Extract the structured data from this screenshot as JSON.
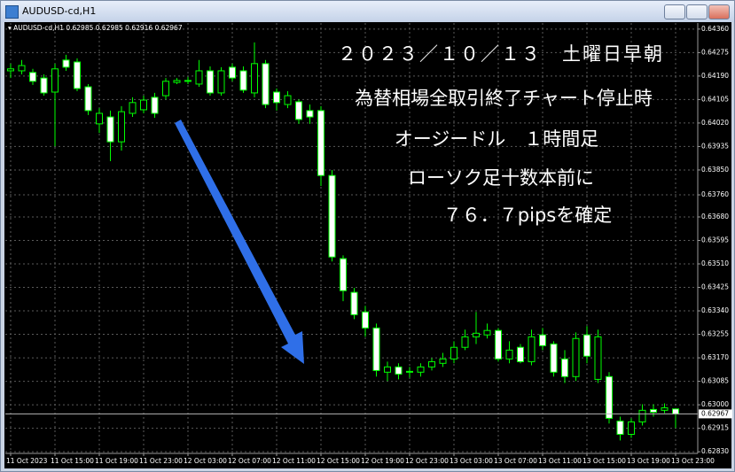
{
  "window_title": "AUDUSD-cd,H1",
  "chart_data": {
    "type": "candlestick",
    "symbol": "AUDUSD-cd,H1",
    "annotations": [
      "２０２３／１０／１３　土曜日早朝",
      "為替相場全取引終了チャート停止時",
      "オージードル　１時間足",
      "ローソク足十数本前に",
      "７６．７pipsを確定"
    ],
    "categories": [
      "11 Oct 2023",
      null,
      null,
      null,
      "11 Oct 15:00",
      null,
      null,
      null,
      "11 Oct 19:00",
      null,
      null,
      null,
      "11 Oct 23:00",
      null,
      null,
      null,
      "12 Oct 03:00",
      null,
      null,
      null,
      "12 Oct 07:00",
      null,
      null,
      null,
      "12 Oct 11:00",
      null,
      null,
      null,
      "12 Oct 15:00",
      null,
      null,
      null,
      "12 Oct 19:00",
      null,
      null,
      null,
      "12 Oct 23:00",
      null,
      null,
      null,
      "13 Oct 03:00",
      null,
      null,
      null,
      "13 Oct 07:00",
      null,
      null,
      null,
      "13 Oct 11:00",
      null,
      null,
      null,
      "13 Oct 15:00",
      null,
      null,
      null,
      "13 Oct 19:00",
      null,
      null,
      null,
      "13 Oct 23:00"
    ],
    "open": [
      0.64209,
      0.64209,
      0.64203,
      0.64183,
      0.64132,
      0.64248,
      0.64241,
      0.64151,
      0.64017,
      0.64042,
      0.63952,
      0.64055,
      0.64068,
      0.64113,
      0.64119,
      0.64167,
      0.64171,
      0.64161,
      0.64209,
      0.64129,
      0.64222,
      0.64209,
      0.64129,
      0.64235,
      0.64132,
      0.64087,
      0.64097,
      0.64065,
      0.64065,
      0.6383,
      0.63529,
      0.63407,
      0.63336,
      0.63278,
      0.63118,
      0.63137,
      0.63118,
      0.63118,
      0.63137,
      0.6315,
      0.63166,
      0.63208,
      0.63246,
      0.63253,
      0.63269,
      0.63166,
      0.63208,
      0.63156,
      0.63253,
      0.6322,
      0.63166,
      0.63102,
      0.63253,
      0.63092,
      0.63102,
      0.62941,
      0.62893,
      0.62938,
      0.62983,
      0.6298,
      0.62985
    ],
    "high": [
      0.64235,
      0.64248,
      0.64216,
      0.64196,
      0.64235,
      0.64267,
      0.64254,
      0.64161,
      0.64074,
      0.64065,
      0.64081,
      0.64113,
      0.64119,
      0.64129,
      0.64183,
      0.64183,
      0.64187,
      0.64248,
      0.64225,
      0.64222,
      0.64235,
      0.64225,
      0.64312,
      0.64248,
      0.64145,
      0.64135,
      0.64106,
      0.64087,
      0.64081,
      0.6385,
      0.63541,
      0.63423,
      0.63358,
      0.63294,
      0.63156,
      0.6315,
      0.63137,
      0.6315,
      0.63169,
      0.63188,
      0.6323,
      0.63272,
      0.63336,
      0.63294,
      0.63278,
      0.6323,
      0.6322,
      0.63272,
      0.63278,
      0.6323,
      0.63198,
      0.63262,
      0.63285,
      0.63272,
      0.63118,
      0.62957,
      0.62951,
      0.63002,
      0.63002,
      0.63005,
      0.62985
    ],
    "low": [
      0.64183,
      0.64196,
      0.64158,
      0.64119,
      0.63936,
      0.64209,
      0.64135,
      0.64049,
      0.63984,
      0.63882,
      0.6392,
      0.64042,
      0.64055,
      0.64039,
      0.64106,
      0.64161,
      0.64161,
      0.64151,
      0.64119,
      0.64119,
      0.64171,
      0.64129,
      0.64113,
      0.64074,
      0.64065,
      0.64074,
      0.64017,
      0.64017,
      0.63792,
      0.63519,
      0.63375,
      0.6331,
      0.63246,
      0.63102,
      0.63086,
      0.63092,
      0.63098,
      0.63102,
      0.63124,
      0.63137,
      0.6315,
      0.63198,
      0.6322,
      0.6324,
      0.63156,
      0.6315,
      0.6315,
      0.63143,
      0.63198,
      0.63102,
      0.63079,
      0.63086,
      0.6315,
      0.63079,
      0.62932,
      0.62871,
      0.6288,
      0.62925,
      0.62957,
      0.6297,
      0.62916
    ],
    "close": [
      0.64216,
      0.64228,
      0.64171,
      0.64129,
      0.64216,
      0.64222,
      0.64145,
      0.64065,
      0.64055,
      0.63952,
      0.64061,
      0.64094,
      0.64103,
      0.64055,
      0.64171,
      0.64174,
      0.64174,
      0.64209,
      0.64129,
      0.64209,
      0.64183,
      0.64139,
      0.64235,
      0.64087,
      0.64094,
      0.64119,
      0.64033,
      0.64042,
      0.6383,
      0.63535,
      0.63413,
      0.63326,
      0.63278,
      0.63124,
      0.63137,
      0.63111,
      0.63121,
      0.63137,
      0.63156,
      0.63166,
      0.63208,
      0.63246,
      0.63259,
      0.63269,
      0.63166,
      0.63198,
      0.63156,
      0.63246,
      0.63214,
      0.63118,
      0.63102,
      0.6324,
      0.63176,
      0.63246,
      0.62951,
      0.62893,
      0.62938,
      0.6298,
      0.62973,
      0.62989,
      0.62967
    ],
    "ylim": [
      0.62824,
      0.64382
    ],
    "yticks": [
      {
        "value": 0.6436,
        "label": "0.64360"
      },
      0.64275,
      {
        "value": 0.6419,
        "label": "0.64190"
      },
      0.64105,
      {
        "value": 0.6402,
        "label": "0.64020"
      },
      0.63935,
      {
        "value": 0.6385,
        "label": "0.63850"
      },
      {
        "value": 0.6376,
        "label": "0.63760"
      },
      {
        "value": 0.6368,
        "label": "0.63680"
      },
      0.63595,
      {
        "value": 0.6351,
        "label": "0.63510"
      },
      0.63425,
      {
        "value": 0.6334,
        "label": "0.63340"
      },
      0.63255,
      {
        "value": 0.6317,
        "label": "0.63170"
      },
      0.63085,
      {
        "value": 0.63,
        "label": "0.63000"
      },
      0.62915,
      {
        "value": 0.6283,
        "label": "0.62830"
      }
    ],
    "grid": true,
    "up_color": "#000000",
    "down_color": "#ffffff",
    "wick_color": "#00ff00"
  }
}
